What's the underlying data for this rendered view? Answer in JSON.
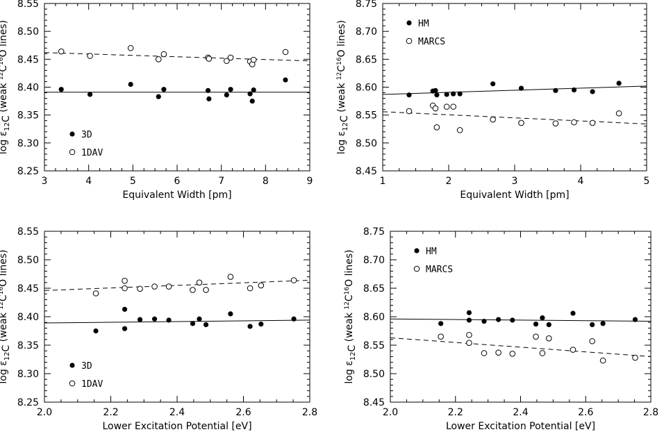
{
  "chart_data": [
    {
      "type": "scatter",
      "xlabel": "Equivalent Width [pm]",
      "ylabel": {
        "prefix": "log ε",
        "sub": "12",
        "sub2": "C",
        "mid": " (weak ",
        "sup1": "12",
        "mid2": "C",
        "sup2": "16",
        "suffix": "O lines)"
      },
      "xlim": [
        3,
        9
      ],
      "ylim": [
        8.25,
        8.55
      ],
      "xticks": [
        "3",
        "4",
        "5",
        "6",
        "7",
        "8",
        "9"
      ],
      "yticks": [
        "8.25",
        "8.30",
        "8.35",
        "8.40",
        "8.45",
        "8.50",
        "8.55"
      ],
      "legend_placement": "bottom-left",
      "series": [
        {
          "name": "3D",
          "marker": "filled-circle",
          "line": "solid",
          "fit": [
            8.391,
            8.391
          ],
          "x": [
            3.38,
            4.03,
            4.95,
            5.58,
            5.7,
            6.7,
            6.72,
            7.12,
            7.21,
            7.65,
            7.7,
            7.73,
            8.45
          ],
          "y": [
            8.396,
            8.387,
            8.405,
            8.383,
            8.396,
            8.394,
            8.379,
            8.386,
            8.396,
            8.388,
            8.375,
            8.395,
            8.413
          ]
        },
        {
          "name": "1DAV",
          "marker": "open-circle",
          "line": "dashed",
          "fit": [
            8.462,
            8.447
          ],
          "x": [
            3.38,
            4.03,
            4.95,
            5.58,
            5.7,
            6.7,
            6.72,
            7.12,
            7.21,
            7.65,
            7.7,
            7.73,
            8.45
          ],
          "y": [
            8.464,
            8.456,
            8.47,
            8.45,
            8.459,
            8.453,
            8.451,
            8.447,
            8.453,
            8.446,
            8.441,
            8.449,
            8.463
          ]
        }
      ]
    },
    {
      "type": "scatter",
      "xlabel": "Equivalent Width [pm]",
      "ylabel": {
        "prefix": "log ε",
        "sub": "12",
        "sub2": "C",
        "mid": " (weak ",
        "sup1": "12",
        "mid2": "C",
        "sup2": "16",
        "suffix": "O lines)"
      },
      "xlim": [
        1,
        5
      ],
      "ylim": [
        8.45,
        8.75
      ],
      "xticks": [
        "1",
        "2",
        "3",
        "4",
        "5"
      ],
      "yticks": [
        "8.45",
        "8.50",
        "8.55",
        "8.60",
        "8.65",
        "8.70",
        "8.75"
      ],
      "legend_placement": "top-left",
      "series": [
        {
          "name": "HM",
          "marker": "filled-circle",
          "line": "solid",
          "fit": [
            8.587,
            8.602
          ],
          "x": [
            1.4,
            1.76,
            1.8,
            1.82,
            1.97,
            2.07,
            2.17,
            2.67,
            3.1,
            3.62,
            3.9,
            4.18,
            4.58
          ],
          "y": [
            8.586,
            8.593,
            8.594,
            8.586,
            8.587,
            8.588,
            8.588,
            8.606,
            8.598,
            8.594,
            8.595,
            8.592,
            8.607
          ]
        },
        {
          "name": "MARCS",
          "marker": "open-circle",
          "line": "dashed",
          "fit": [
            8.556,
            8.534
          ],
          "x": [
            1.4,
            1.76,
            1.8,
            1.82,
            1.97,
            2.07,
            2.17,
            2.67,
            3.1,
            3.62,
            3.9,
            4.18,
            4.58
          ],
          "y": [
            8.557,
            8.567,
            8.562,
            8.528,
            8.565,
            8.565,
            8.523,
            8.542,
            8.536,
            8.535,
            8.537,
            8.536,
            8.553
          ]
        }
      ]
    },
    {
      "type": "scatter",
      "xlabel": "Lower Excitation Potential [eV]",
      "ylabel": {
        "prefix": "log ε",
        "sub": "12",
        "sub2": "C",
        "mid": " (weak ",
        "sup1": "12",
        "mid2": "C",
        "sup2": "16",
        "suffix": "O lines)"
      },
      "xlim": [
        2.0,
        2.8
      ],
      "ylim": [
        8.25,
        8.55
      ],
      "xticks": [
        "2.0",
        "2.2",
        "2.4",
        "2.6",
        "2.8"
      ],
      "yticks": [
        "8.25",
        "8.30",
        "8.35",
        "8.40",
        "8.45",
        "8.50",
        "8.55"
      ],
      "legend_placement": "bottom-left",
      "series": [
        {
          "name": "3D",
          "marker": "filled-circle",
          "line": "solid",
          "fit": [
            8.389,
            8.394
          ],
          "x": [
            2.155,
            2.242,
            2.242,
            2.288,
            2.332,
            2.375,
            2.447,
            2.467,
            2.487,
            2.561,
            2.62,
            2.653,
            2.752
          ],
          "y": [
            8.375,
            8.413,
            8.379,
            8.395,
            8.396,
            8.394,
            8.388,
            8.396,
            8.386,
            8.405,
            8.383,
            8.387,
            8.396
          ]
        },
        {
          "name": "1DAV",
          "marker": "open-circle",
          "line": "dashed",
          "fit": [
            8.446,
            8.464
          ],
          "x": [
            2.155,
            2.242,
            2.242,
            2.288,
            2.332,
            2.375,
            2.447,
            2.467,
            2.487,
            2.561,
            2.62,
            2.653,
            2.752
          ],
          "y": [
            8.441,
            8.463,
            8.45,
            8.449,
            8.453,
            8.453,
            8.447,
            8.46,
            8.447,
            8.47,
            8.45,
            8.455,
            8.464
          ]
        }
      ]
    },
    {
      "type": "scatter",
      "xlabel": "Lower Excitation Potential [eV]",
      "ylabel": {
        "prefix": "log ε",
        "sub": "12",
        "sub2": "C",
        "mid": " (weak ",
        "sup1": "12",
        "mid2": "C",
        "sup2": "16",
        "suffix": "O lines)"
      },
      "xlim": [
        2.0,
        2.8
      ],
      "ylim": [
        8.45,
        8.75
      ],
      "xticks": [
        "2.0",
        "2.2",
        "2.4",
        "2.6",
        "2.8"
      ],
      "yticks": [
        "8.45",
        "8.50",
        "8.55",
        "8.60",
        "8.65",
        "8.70",
        "8.75"
      ],
      "legend_placement": "top-left",
      "series": [
        {
          "name": "HM",
          "marker": "filled-circle",
          "line": "solid",
          "fit": [
            8.596,
            8.592
          ],
          "x": [
            2.155,
            2.242,
            2.242,
            2.288,
            2.332,
            2.375,
            2.447,
            2.467,
            2.487,
            2.561,
            2.62,
            2.653,
            2.752
          ],
          "y": [
            8.588,
            8.607,
            8.594,
            8.592,
            8.595,
            8.594,
            8.587,
            8.598,
            8.586,
            8.606,
            8.586,
            8.588,
            8.595
          ]
        },
        {
          "name": "MARCS",
          "marker": "open-circle",
          "line": "dashed",
          "fit": [
            8.563,
            8.53
          ],
          "x": [
            2.155,
            2.242,
            2.242,
            2.288,
            2.332,
            2.375,
            2.447,
            2.467,
            2.487,
            2.561,
            2.62,
            2.653,
            2.752
          ],
          "y": [
            8.565,
            8.568,
            8.554,
            8.536,
            8.537,
            8.535,
            8.565,
            8.536,
            8.562,
            8.542,
            8.557,
            8.523,
            8.528
          ]
        }
      ]
    }
  ]
}
